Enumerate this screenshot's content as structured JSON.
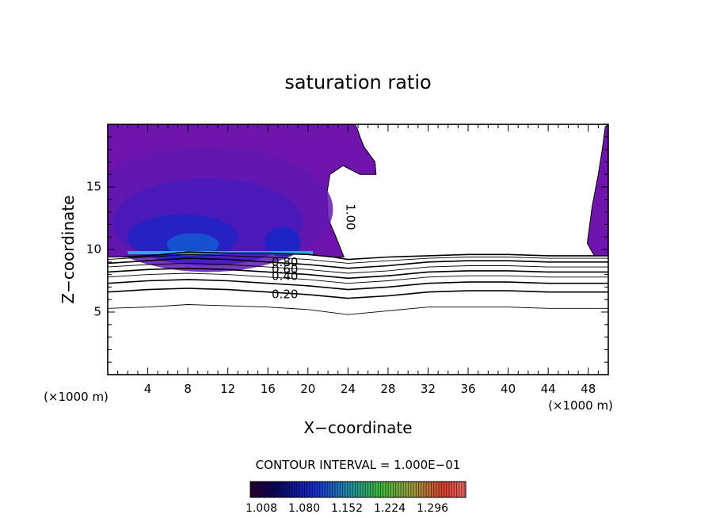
{
  "chart_data": {
    "type": "contour",
    "title": "saturation ratio",
    "xlabel": "X−coordinate",
    "ylabel": "Z−coordinate",
    "x_unit_left": "(×1000 m)",
    "x_unit_right": "(×1000 m)",
    "xlim": [
      0,
      50
    ],
    "ylim": [
      0,
      20
    ],
    "xticks": [
      4,
      8,
      12,
      16,
      20,
      24,
      28,
      32,
      36,
      40,
      44,
      48
    ],
    "yticks": [
      5,
      10,
      15
    ],
    "contour_interval_text": "CONTOUR INTERVAL = 1.000E−01",
    "contour_labels": [
      "1.00",
      "0.80",
      "0.60",
      "0.40",
      "0.20"
    ],
    "colorbar_labels": [
      "1.008",
      "1.080",
      "1.152",
      "1.224",
      "1.296"
    ],
    "colorbar_range": [
      1.008,
      1.296
    ],
    "contours": [
      {
        "level": 1.0,
        "x": [
          1.5,
          4,
          8,
          12,
          16,
          20,
          22.5,
          24,
          28,
          32,
          36,
          40,
          44,
          48,
          50
        ],
        "z": [
          9.4,
          9.5,
          9.8,
          9.7,
          9.7,
          9.6,
          9.4,
          9.2,
          9.4,
          9.5,
          9.6,
          9.6,
          9.5,
          9.5,
          9.5
        ]
      },
      {
        "level": 0.9,
        "x": [
          0,
          4,
          8,
          12,
          16,
          20,
          24,
          28,
          32,
          36,
          40,
          44,
          48,
          50
        ],
        "z": [
          9.2,
          9.4,
          9.6,
          9.5,
          9.4,
          9.2,
          8.9,
          9.1,
          9.3,
          9.4,
          9.4,
          9.3,
          9.3,
          9.3
        ]
      },
      {
        "level": 0.8,
        "x": [
          0,
          4,
          8,
          12,
          16,
          20,
          24,
          28,
          32,
          36,
          40,
          44,
          48,
          50
        ],
        "z": [
          8.9,
          9.1,
          9.3,
          9.2,
          9.0,
          8.8,
          8.5,
          8.7,
          9.0,
          9.1,
          9.1,
          9.0,
          9.0,
          9.0
        ]
      },
      {
        "level": 0.7,
        "x": [
          0,
          4,
          8,
          12,
          16,
          20,
          24,
          28,
          32,
          36,
          40,
          44,
          48,
          50
        ],
        "z": [
          8.6,
          8.8,
          8.9,
          8.8,
          8.6,
          8.4,
          8.1,
          8.3,
          8.6,
          8.7,
          8.7,
          8.6,
          8.6,
          8.6
        ]
      },
      {
        "level": 0.6,
        "x": [
          0,
          4,
          8,
          12,
          16,
          20,
          24,
          28,
          32,
          36,
          40,
          44,
          48,
          50
        ],
        "z": [
          8.2,
          8.4,
          8.5,
          8.4,
          8.2,
          8.0,
          7.7,
          7.9,
          8.2,
          8.3,
          8.3,
          8.2,
          8.2,
          8.2
        ]
      },
      {
        "level": 0.5,
        "x": [
          0,
          4,
          8,
          12,
          16,
          20,
          24,
          28,
          32,
          36,
          40,
          44,
          48,
          50
        ],
        "z": [
          7.8,
          8.0,
          8.1,
          8.0,
          7.8,
          7.6,
          7.3,
          7.5,
          7.8,
          7.9,
          7.9,
          7.8,
          7.8,
          7.8
        ]
      },
      {
        "level": 0.4,
        "x": [
          0,
          4,
          8,
          12,
          16,
          20,
          24,
          28,
          32,
          36,
          40,
          44,
          48,
          50
        ],
        "z": [
          7.3,
          7.5,
          7.6,
          7.5,
          7.3,
          7.1,
          6.8,
          7.0,
          7.3,
          7.4,
          7.4,
          7.3,
          7.3,
          7.3
        ]
      },
      {
        "level": 0.2,
        "x": [
          0,
          4,
          8,
          12,
          16,
          20,
          24,
          28,
          32,
          36,
          40,
          44,
          48,
          50
        ],
        "z": [
          6.6,
          6.8,
          6.9,
          6.8,
          6.6,
          6.4,
          6.1,
          6.3,
          6.6,
          6.7,
          6.7,
          6.6,
          6.6,
          6.6
        ]
      },
      {
        "level": 0.1,
        "x": [
          0,
          4,
          8,
          12,
          16,
          20,
          24,
          28,
          32,
          36,
          40,
          44,
          48,
          50
        ],
        "z": [
          5.3,
          5.4,
          5.6,
          5.5,
          5.4,
          5.2,
          4.8,
          5.1,
          5.4,
          5.4,
          5.4,
          5.3,
          5.3,
          5.3
        ]
      }
    ],
    "supersaturated_regions": [
      {
        "name": "left-region",
        "x": [
          0,
          1.5,
          4,
          8,
          12,
          16,
          18,
          20,
          22.5,
          23.6,
          22.8,
          22.0,
          21.9,
          22.2,
          23.5,
          25.2,
          26.8,
          26.7,
          25.6,
          25.2,
          25.0,
          24.7,
          0
        ],
        "z": [
          9.4,
          9.4,
          9.6,
          9.8,
          9.7,
          9.7,
          9.7,
          9.6,
          9.4,
          9.4,
          11.0,
          12.5,
          14.5,
          16.0,
          16.7,
          16.0,
          16.0,
          17.0,
          18.2,
          19.0,
          19.5,
          20,
          20
        ]
      },
      {
        "name": "right-region",
        "x": [
          50,
          48.6,
          47.9,
          48.4,
          49.0,
          49.4,
          49.7,
          50
        ],
        "z": [
          9.5,
          9.5,
          10.5,
          13.5,
          16.0,
          18.0,
          19.8,
          20
        ]
      }
    ],
    "value_blobs": [
      {
        "cx": 8.5,
        "cz": 10.4,
        "rx": 2.6,
        "rz": 0.9,
        "value": 1.09
      },
      {
        "cx": 7.5,
        "cz": 11.0,
        "rx": 5.5,
        "rz": 1.8,
        "value": 1.055
      },
      {
        "cx": 17.5,
        "cz": 10.6,
        "rx": 1.8,
        "rz": 1.2,
        "value": 1.06
      },
      {
        "cx": 10,
        "cz": 12.2,
        "rx": 9.5,
        "rz": 3.5,
        "value": 1.035
      },
      {
        "cx": 10,
        "cz": 13.2,
        "rx": 12.5,
        "rz": 5.0,
        "value": 1.02
      }
    ],
    "cloud_base_band": {
      "x": [
        2,
        20.5
      ],
      "z": 9.75,
      "value": 1.13
    }
  }
}
